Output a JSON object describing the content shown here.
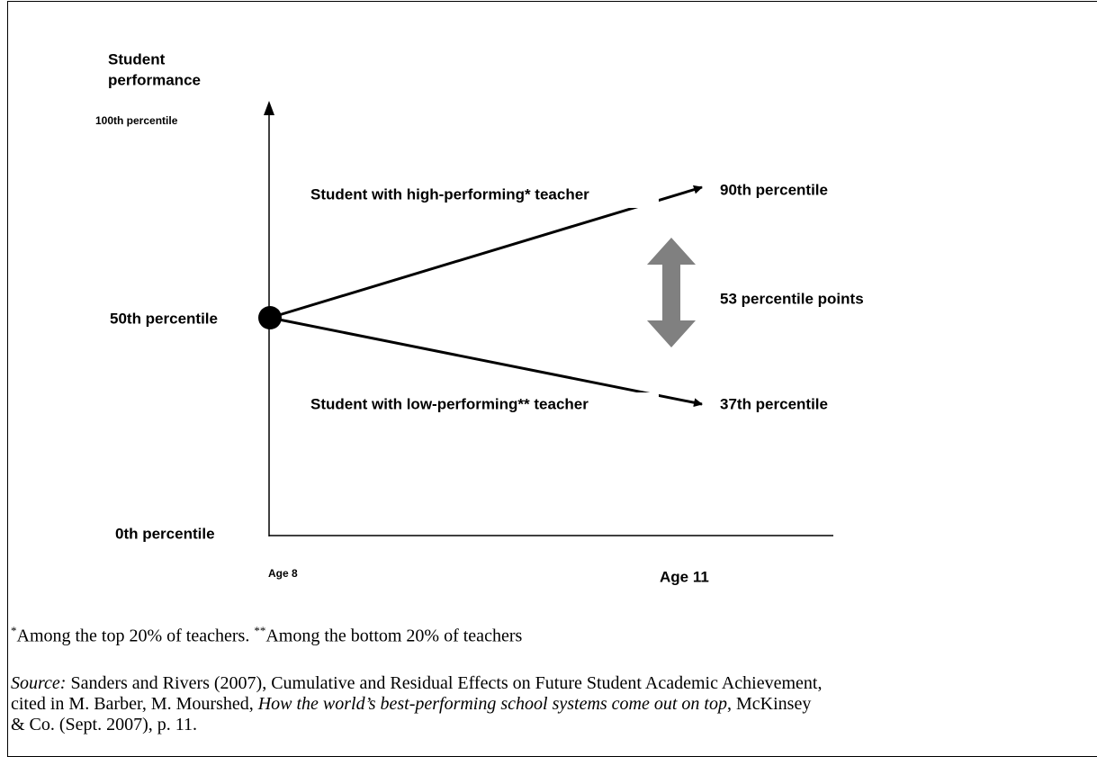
{
  "diagram": {
    "y_axis_title": [
      "Student",
      "performance"
    ],
    "y_labels": {
      "top": "100th percentile",
      "middle": "50th percentile",
      "bottom": "0th percentile"
    },
    "x_labels": {
      "start": "Age 8",
      "end": "Age 11"
    },
    "paths": [
      {
        "label": "Student with high-performing* teacher",
        "end_label": "90th percentile"
      },
      {
        "label": "Student with low-performing** teacher",
        "end_label": "37th percentile"
      }
    ],
    "gap_label": "53 percentile points"
  },
  "footnote": {
    "mark1": "*",
    "text1": "Among the top 20% of teachers.",
    "mark2": "**",
    "text2": "Among the bottom 20% of teachers"
  },
  "source": {
    "label": "Source:",
    "line1": "Sanders and Rivers (2007), Cumulative and Residual Effects on Future Student Academic Achievement,",
    "line2a": "cited in M. Barber, M. Mourshed,",
    "title": "How the world’s best-performing school systems come out on top",
    "line2b": ", McKinsey",
    "line3": "& Co. (Sept. 2007), p. 11."
  }
}
